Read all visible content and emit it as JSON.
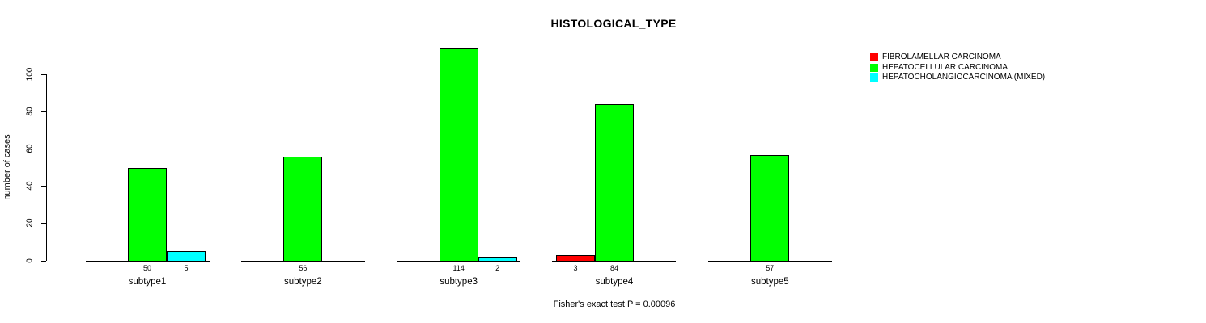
{
  "chart_data": {
    "type": "bar",
    "title": "HISTOLOGICAL_TYPE",
    "ylabel": "number of cases",
    "xlabel": "",
    "footer": "Fisher's exact test P = 0.00096",
    "categories": [
      "subtype1",
      "subtype2",
      "subtype3",
      "subtype4",
      "subtype5"
    ],
    "yticks": [
      0,
      20,
      40,
      60,
      80,
      100
    ],
    "ylim": [
      0,
      115
    ],
    "grid": false,
    "legend_position": "top-right",
    "bar_value_labels_shown": true,
    "series": [
      {
        "name": "FIBROLAMELLAR CARCINOMA",
        "color": "#FF0000",
        "values": [
          0,
          0,
          0,
          3,
          0
        ]
      },
      {
        "name": "HEPATOCELLULAR CARCINOMA",
        "color": "#00FF00",
        "values": [
          50,
          56,
          114,
          84,
          57
        ]
      },
      {
        "name": "HEPATOCHOLANGIOCARCINOMA (MIXED)",
        "color": "#00FFFF",
        "values": [
          5,
          0,
          2,
          0,
          0
        ]
      }
    ]
  }
}
